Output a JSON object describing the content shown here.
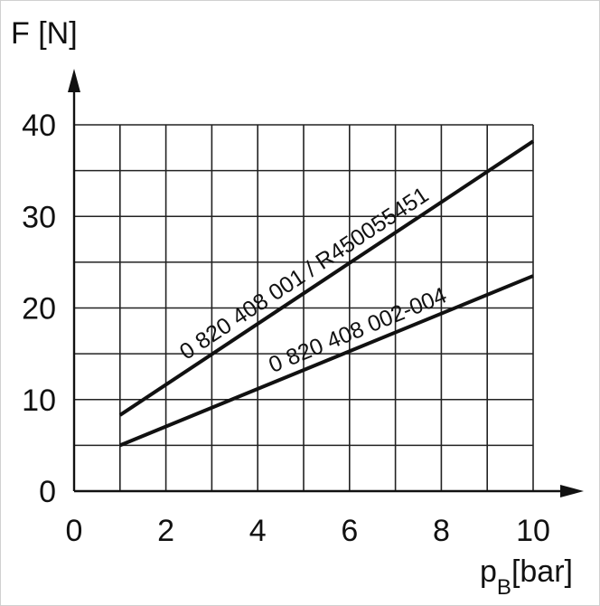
{
  "chart_data": {
    "type": "line",
    "xlabel": "p",
    "xlabel_sub": "B",
    "xlabel_unit": "[bar]",
    "ylabel": "F [N]",
    "xlim": [
      0,
      10
    ],
    "ylim": [
      0,
      40
    ],
    "x_ticks": [
      0,
      2,
      4,
      6,
      8,
      10
    ],
    "y_ticks": [
      0,
      10,
      20,
      30,
      40
    ],
    "x_tick_labels": [
      "0",
      "2",
      "4",
      "6",
      "8",
      "10"
    ],
    "y_tick_labels": [
      "0",
      "10",
      "20",
      "30",
      "40"
    ],
    "grid": true,
    "series": [
      {
        "name": "0 820 408 001 / R450055451",
        "x": [
          1,
          10
        ],
        "y": [
          8.3,
          38.2
        ]
      },
      {
        "name": "0 820 408 002-004",
        "x": [
          1,
          10
        ],
        "y": [
          5.0,
          23.5
        ]
      }
    ]
  }
}
